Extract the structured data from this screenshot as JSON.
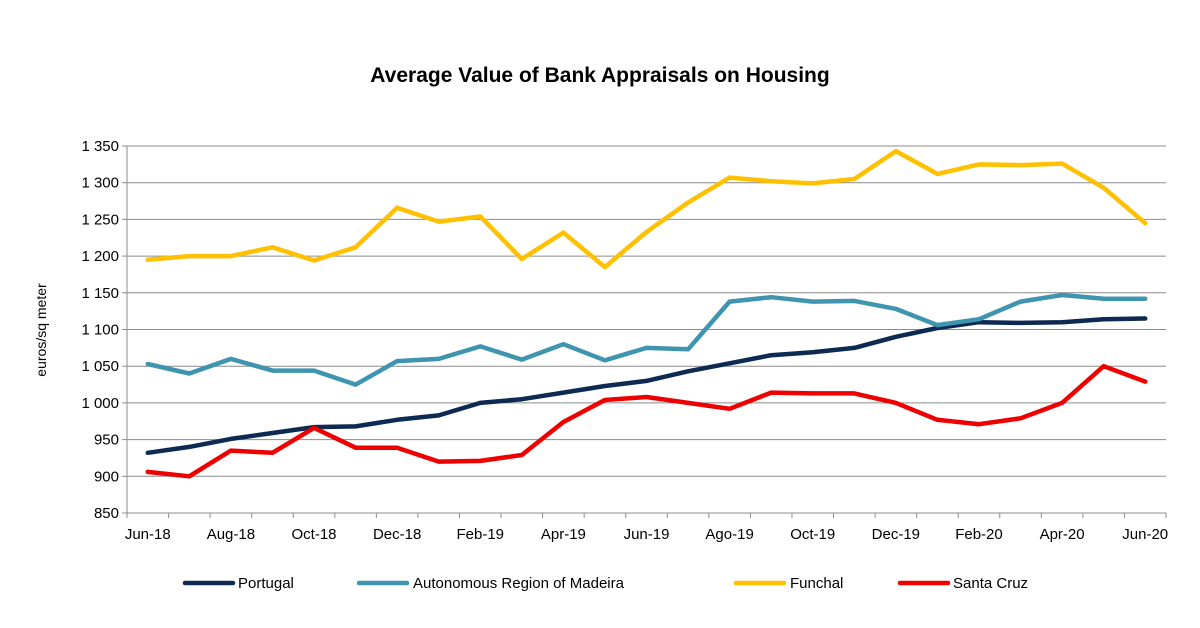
{
  "chart_data": {
    "type": "line",
    "title": "Average Value of Bank Appraisals on Housing",
    "xlabel": "",
    "ylabel": "euros/sq meter",
    "ylim": [
      850,
      1350
    ],
    "yticks": [
      850,
      900,
      950,
      1000,
      1050,
      1100,
      1150,
      1200,
      1250,
      1300,
      1350
    ],
    "ytick_labels": [
      "850",
      "900",
      "950",
      "1 000",
      "1 050",
      "1 100",
      "1 150",
      "1 200",
      "1 250",
      "1 300",
      "1 350"
    ],
    "x": [
      "Jun-18",
      "Jul-18",
      "Aug-18",
      "Sep-18",
      "Oct-18",
      "Nov-18",
      "Dec-18",
      "Jan-19",
      "Feb-19",
      "Mar-19",
      "Apr-19",
      "May-19",
      "Jun-19",
      "Jul-19",
      "Ago-19",
      "Sep-19",
      "Oct-19",
      "Nov-19",
      "Dec-19",
      "Jan-20",
      "Feb-20",
      "Mar-20",
      "Apr-20",
      "May-20",
      "Jun-20"
    ],
    "xtick_labels": [
      "Jun-18",
      "",
      "Aug-18",
      "",
      "Oct-18",
      "",
      "Dec-18",
      "",
      "Feb-19",
      "",
      "Apr-19",
      "",
      "Jun-19",
      "",
      "Ago-19",
      "",
      "Oct-19",
      "",
      "Dec-19",
      "",
      "Feb-20",
      "",
      "Apr-20",
      "",
      "Jun-20"
    ],
    "grid": true,
    "legend": "bottom",
    "series": [
      {
        "name": "Portugal",
        "color": "#0d2a52",
        "values": [
          932,
          940,
          951,
          959,
          967,
          968,
          977,
          983,
          1000,
          1005,
          1014,
          1023,
          1030,
          1043,
          1054,
          1065,
          1069,
          1075,
          1090,
          1102,
          1110,
          1109,
          1110,
          1114,
          1115
        ]
      },
      {
        "name": "Autonomous Region of Madeira",
        "color": "#3f94b0",
        "values": [
          1053,
          1040,
          1060,
          1044,
          1044,
          1025,
          1057,
          1060,
          1077,
          1059,
          1080,
          1058,
          1075,
          1073,
          1138,
          1144,
          1138,
          1139,
          1128,
          1106,
          1114,
          1138,
          1147,
          1142,
          1142
        ]
      },
      {
        "name": "Funchal",
        "color": "#ffc000",
        "values": [
          1195,
          1200,
          1200,
          1212,
          1194,
          1212,
          1266,
          1247,
          1254,
          1196,
          1232,
          1185,
          1233,
          1273,
          1307,
          1302,
          1299,
          1305,
          1343,
          1312,
          1325,
          1324,
          1326,
          1293,
          1245
        ]
      },
      {
        "name": "Santa Cruz",
        "color": "#ee0000",
        "values": [
          906,
          900,
          935,
          932,
          966,
          939,
          939,
          920,
          921,
          929,
          974,
          1004,
          1008,
          1000,
          992,
          1014,
          1013,
          1013,
          1000,
          977,
          971,
          979,
          1000,
          1050,
          1029
        ]
      }
    ]
  }
}
